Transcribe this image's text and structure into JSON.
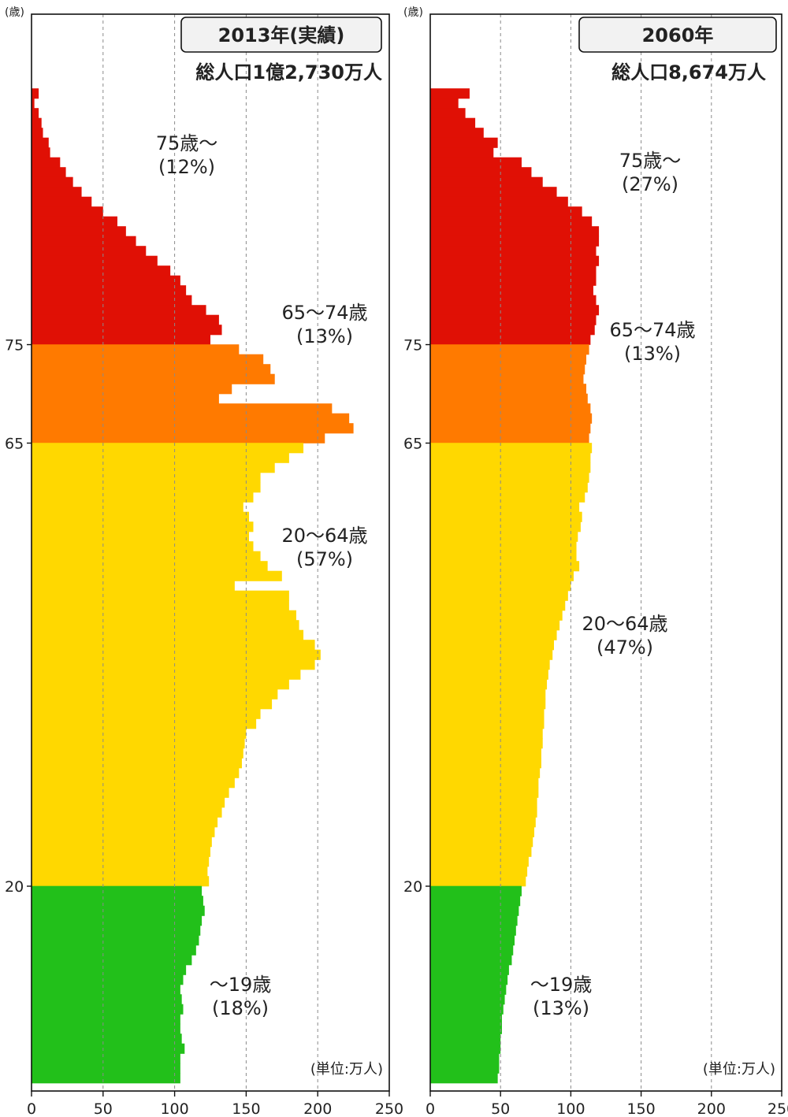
{
  "chart_data": [
    {
      "type": "bar",
      "orientation": "horizontal",
      "title": "2013年(実績)",
      "subtitle": "総人口1億2,730万人",
      "ylabel": "(歳)",
      "unit_note": "(単位:万人)",
      "xlim": [
        0,
        250
      ],
      "x_ticks": [
        0,
        50,
        100,
        150,
        200,
        250
      ],
      "age_ticks": [
        20,
        65,
        75
      ],
      "age_max": 100,
      "grid": "vertical dashed",
      "colors": {
        "75+": "#e01005",
        "65-74": "#ff7a00",
        "20-64": "#ffd800",
        "0-19": "#22c01a"
      },
      "groups": [
        {
          "label": "75歳～",
          "share": "(12%)"
        },
        {
          "label": "65～74歳",
          "share": "(13%)"
        },
        {
          "label": "20～64歳",
          "share": "(57%)"
        },
        {
          "label": "～19歳",
          "share": "(18%)"
        }
      ],
      "ages": [
        100,
        99,
        98,
        97,
        96,
        95,
        94,
        93,
        92,
        91,
        90,
        89,
        88,
        87,
        86,
        85,
        84,
        83,
        82,
        81,
        80,
        79,
        78,
        77,
        76,
        75,
        74,
        73,
        72,
        71,
        70,
        69,
        68,
        67,
        66,
        65,
        64,
        63,
        62,
        61,
        60,
        59,
        58,
        57,
        56,
        55,
        54,
        53,
        52,
        51,
        50,
        49,
        48,
        47,
        46,
        45,
        44,
        43,
        42,
        41,
        40,
        39,
        38,
        37,
        36,
        35,
        34,
        33,
        32,
        31,
        30,
        29,
        28,
        27,
        26,
        25,
        24,
        23,
        22,
        21,
        20,
        19,
        18,
        17,
        16,
        15,
        14,
        13,
        12,
        11,
        10,
        9,
        8,
        7,
        6,
        5,
        4,
        3,
        2,
        1,
        0
      ],
      "values": [
        5,
        2,
        5,
        7,
        8,
        12,
        13,
        20,
        24,
        29,
        35,
        42,
        50,
        60,
        66,
        73,
        80,
        88,
        97,
        104,
        108,
        112,
        122,
        131,
        133,
        125,
        145,
        162,
        167,
        170,
        140,
        131,
        210,
        222,
        225,
        205,
        190,
        180,
        170,
        160,
        160,
        155,
        148,
        152,
        155,
        152,
        155,
        160,
        165,
        175,
        142,
        180,
        180,
        185,
        187,
        190,
        198,
        202,
        198,
        188,
        180,
        172,
        168,
        160,
        157,
        150,
        149,
        148,
        147,
        145,
        142,
        138,
        135,
        133,
        130,
        128,
        126,
        125,
        124,
        123,
        124,
        119,
        120,
        121,
        119,
        118,
        117,
        115,
        112,
        108,
        106,
        104,
        105,
        106,
        104,
        104,
        105,
        107,
        104,
        104,
        104
      ]
    },
    {
      "type": "bar",
      "orientation": "horizontal",
      "title": "2060年",
      "subtitle": "総人口8,674万人",
      "ylabel": "(歳)",
      "unit_note": "(単位:万人)",
      "xlim": [
        0,
        250
      ],
      "x_ticks": [
        0,
        50,
        100,
        150,
        200,
        250
      ],
      "age_ticks": [
        20,
        65,
        75
      ],
      "age_max": 100,
      "grid": "vertical dashed",
      "colors": {
        "75+": "#e01005",
        "65-74": "#ff7a00",
        "20-64": "#ffd800",
        "0-19": "#22c01a"
      },
      "groups": [
        {
          "label": "75歳～",
          "share": "(27%)"
        },
        {
          "label": "65～74歳",
          "share": "(13%)"
        },
        {
          "label": "20～64歳",
          "share": "(47%)"
        },
        {
          "label": "～19歳",
          "share": "(13%)"
        }
      ],
      "ages": [
        100,
        99,
        98,
        97,
        96,
        95,
        94,
        93,
        92,
        91,
        90,
        89,
        88,
        87,
        86,
        85,
        84,
        83,
        82,
        81,
        80,
        79,
        78,
        77,
        76,
        75,
        74,
        73,
        72,
        71,
        70,
        69,
        68,
        67,
        66,
        65,
        64,
        63,
        62,
        61,
        60,
        59,
        58,
        57,
        56,
        55,
        54,
        53,
        52,
        51,
        50,
        49,
        48,
        47,
        46,
        45,
        44,
        43,
        42,
        41,
        40,
        39,
        38,
        37,
        36,
        35,
        34,
        33,
        32,
        31,
        30,
        29,
        28,
        27,
        26,
        25,
        24,
        23,
        22,
        21,
        20,
        19,
        18,
        17,
        16,
        15,
        14,
        13,
        12,
        11,
        10,
        9,
        8,
        7,
        6,
        5,
        4,
        3,
        2,
        1,
        0
      ],
      "values": [
        28,
        20,
        25,
        32,
        38,
        48,
        45,
        65,
        72,
        80,
        90,
        98,
        108,
        115,
        120,
        120,
        118,
        120,
        118,
        118,
        116,
        118,
        120,
        118,
        117,
        114,
        113,
        111,
        110,
        109,
        111,
        112,
        114,
        115,
        114,
        113,
        115,
        114,
        114,
        113,
        112,
        110,
        106,
        108,
        107,
        105,
        104,
        104,
        106,
        102,
        100,
        98,
        96,
        94,
        92,
        90,
        88,
        87,
        85,
        84,
        83,
        82,
        82,
        81,
        81,
        80,
        80,
        79,
        79,
        78,
        77,
        77,
        76,
        76,
        75,
        74,
        73,
        72,
        70,
        69,
        68,
        65,
        64,
        63,
        62,
        61,
        60,
        59,
        58,
        56,
        55,
        54,
        53,
        52,
        51,
        51,
        50,
        50,
        49,
        49,
        48
      ]
    }
  ]
}
